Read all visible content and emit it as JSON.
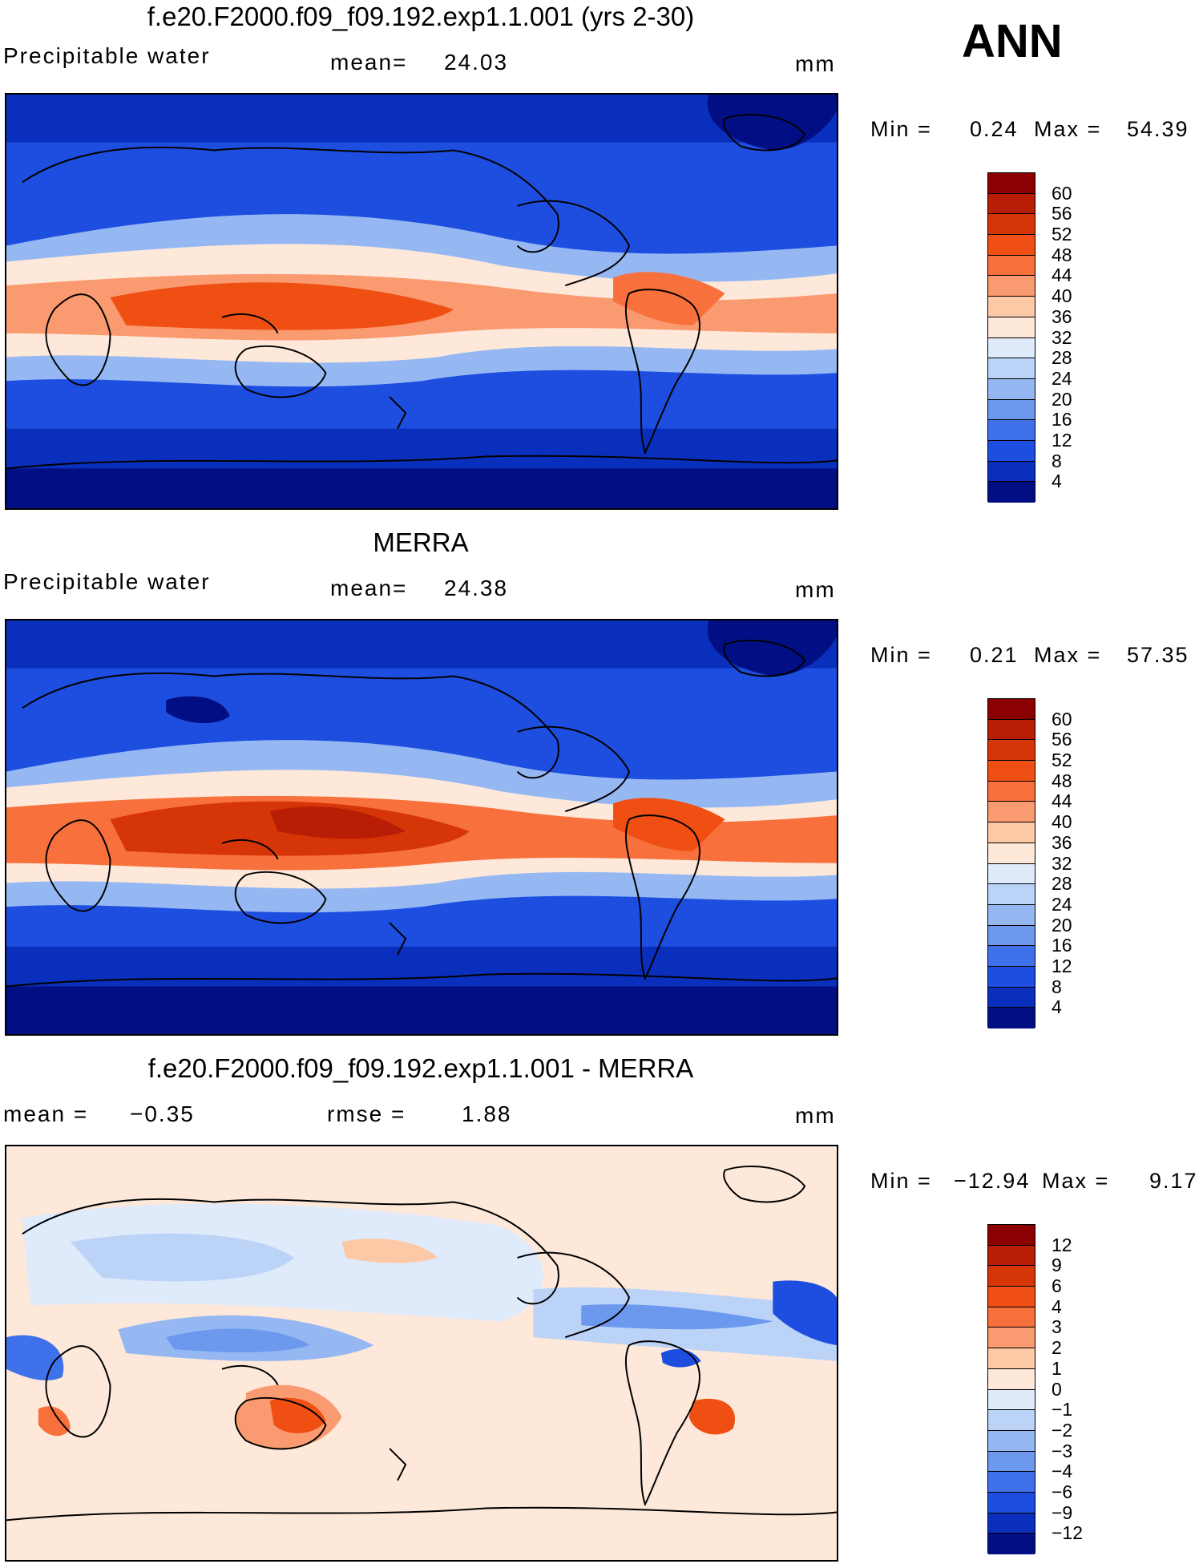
{
  "season": "ANN",
  "panels": [
    {
      "title": "f.e20.F2000.f09_f09.192.exp1.1.001 (yrs 2-30)",
      "variable": "Precipitable water",
      "stat_left": "",
      "stat_label": "mean=",
      "stat_value": "24.03",
      "units": "mm",
      "min_label": "Min =",
      "min_value": "0.24",
      "max_label": "Max =",
      "max_value": "54.39",
      "levels": [
        "60",
        "56",
        "52",
        "48",
        "44",
        "40",
        "36",
        "32",
        "28",
        "24",
        "20",
        "16",
        "12",
        "8",
        "4"
      ],
      "colors": [
        "#8b0000",
        "#b81d05",
        "#d63508",
        "#f04f13",
        "#f8703c",
        "#fa9a70",
        "#fcc8a6",
        "#fde8da",
        "#dfeafb",
        "#bcd3f8",
        "#95b8f3",
        "#6c98ee",
        "#3f72ea",
        "#1d4ee0",
        "#0a2fbc",
        "#020f84"
      ]
    },
    {
      "title": "MERRA",
      "variable": "Precipitable water",
      "stat_label": "mean=",
      "stat_value": "24.38",
      "units": "mm",
      "min_label": "Min =",
      "min_value": "0.21",
      "max_label": "Max =",
      "max_value": "57.35",
      "levels": [
        "60",
        "56",
        "52",
        "48",
        "44",
        "40",
        "36",
        "32",
        "28",
        "24",
        "20",
        "16",
        "12",
        "8",
        "4"
      ],
      "colors": [
        "#8b0000",
        "#b81d05",
        "#d63508",
        "#f04f13",
        "#f8703c",
        "#fa9a70",
        "#fcc8a6",
        "#fde8da",
        "#dfeafb",
        "#bcd3f8",
        "#95b8f3",
        "#6c98ee",
        "#3f72ea",
        "#1d4ee0",
        "#0a2fbc",
        "#020f84"
      ]
    },
    {
      "title": "f.e20.F2000.f09_f09.192.exp1.1.001 - MERRA",
      "stat_label": "mean =",
      "stat_value": "−0.35",
      "rmse_label": "rmse =",
      "rmse_value": "1.88",
      "units": "mm",
      "min_label": "Min =",
      "min_value": "−12.94",
      "max_label": "Max =",
      "max_value": "9.17",
      "levels": [
        "12",
        "9",
        "6",
        "4",
        "3",
        "2",
        "1",
        "0",
        "−1",
        "−2",
        "−3",
        "−4",
        "−6",
        "−9",
        "−12"
      ],
      "colors": [
        "#8b0000",
        "#b81d05",
        "#d63508",
        "#f04f13",
        "#f8703c",
        "#fa9a70",
        "#fcc8a6",
        "#fde8da",
        "#dfeafb",
        "#bcd3f8",
        "#95b8f3",
        "#6c98ee",
        "#3f72ea",
        "#1d4ee0",
        "#0a2fbc",
        "#020f84"
      ]
    }
  ]
}
